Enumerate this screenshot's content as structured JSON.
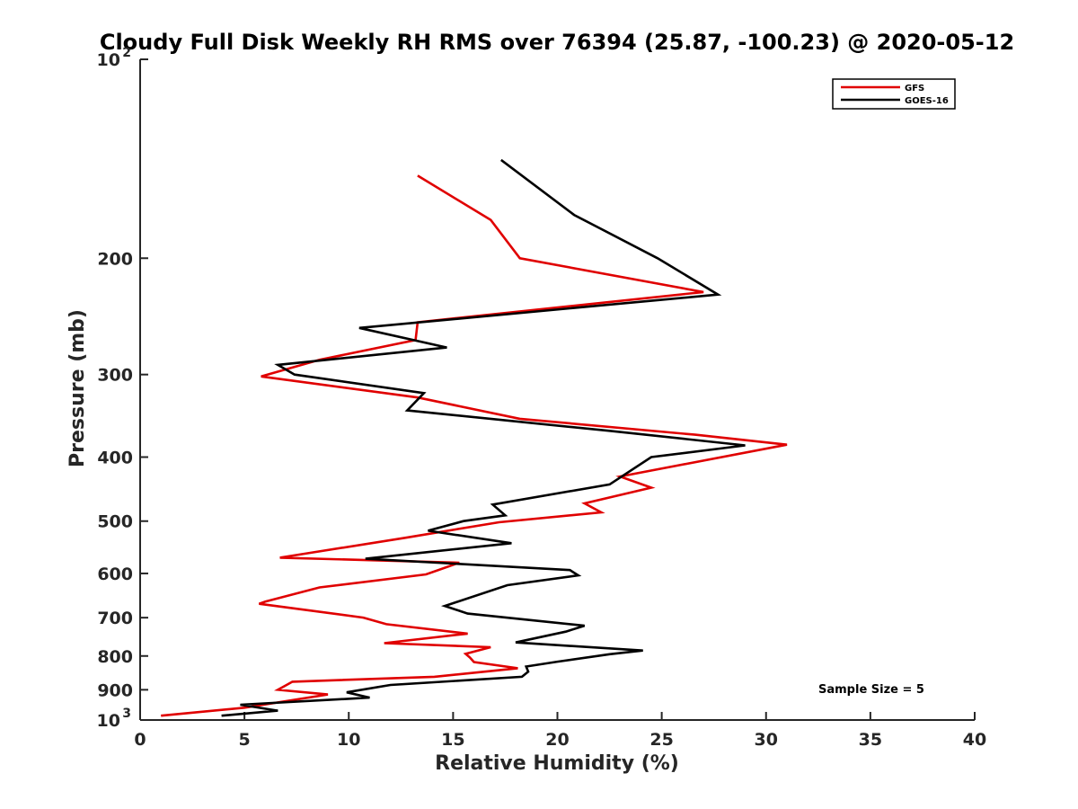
{
  "chart_data": {
    "type": "line",
    "title": "Cloudy Full Disk Weekly RH RMS over 76394 (25.87, -100.23) @ 2020-05-12",
    "xlabel": "Relative Humidity (%)",
    "ylabel": "Pressure (mb)",
    "xlim": [
      0,
      40
    ],
    "ylim": [
      100,
      1000
    ],
    "y_scale": "log",
    "y_reversed": true,
    "grid": false,
    "legend_position": "top-right",
    "x_ticks": [
      "0",
      "5",
      "10",
      "15",
      "20",
      "25",
      "30",
      "35",
      "40"
    ],
    "y_ticks": [
      {
        "value": 100,
        "base": "10",
        "exp": "2"
      },
      {
        "value": 200,
        "label": "200"
      },
      {
        "value": 300,
        "label": "300"
      },
      {
        "value": 400,
        "label": "400"
      },
      {
        "value": 500,
        "label": "500"
      },
      {
        "value": 600,
        "label": "600"
      },
      {
        "value": 700,
        "label": "700"
      },
      {
        "value": 800,
        "label": "800"
      },
      {
        "value": 900,
        "label": "900"
      },
      {
        "value": 1000,
        "base": "10",
        "exp": "3"
      }
    ],
    "annotation": "Sample Size = 5",
    "series": [
      {
        "name": "GFS",
        "color": "#e00000",
        "points": [
          [
            13.3,
            150
          ],
          [
            16.8,
            175
          ],
          [
            18.2,
            200
          ],
          [
            27.0,
            225
          ],
          [
            13.3,
            250
          ],
          [
            13.2,
            266
          ],
          [
            8.6,
            285
          ],
          [
            5.8,
            302
          ],
          [
            13.3,
            325
          ],
          [
            18.2,
            350
          ],
          [
            26.6,
            370
          ],
          [
            31.0,
            383
          ],
          [
            23.0,
            428
          ],
          [
            24.5,
            445
          ],
          [
            21.3,
            470
          ],
          [
            22.1,
            485
          ],
          [
            17.2,
            502
          ],
          [
            12.7,
            530
          ],
          [
            6.7,
            568
          ],
          [
            15.3,
            578
          ],
          [
            13.7,
            602
          ],
          [
            8.6,
            630
          ],
          [
            6.0,
            662
          ],
          [
            5.7,
            667
          ],
          [
            10.7,
            700
          ],
          [
            11.8,
            716
          ],
          [
            15.7,
            740
          ],
          [
            11.7,
            765
          ],
          [
            16.8,
            776
          ],
          [
            15.6,
            794
          ],
          [
            15.8,
            804
          ],
          [
            16.0,
            817
          ],
          [
            18.1,
            835
          ],
          [
            14.1,
            860
          ],
          [
            7.3,
            875
          ],
          [
            6.6,
            900
          ],
          [
            9.0,
            915
          ],
          [
            5.0,
            958
          ],
          [
            1.0,
            985
          ]
        ]
      },
      {
        "name": "GOES-16",
        "color": "#000000",
        "points": [
          [
            17.3,
            142
          ],
          [
            20.8,
            172
          ],
          [
            24.8,
            200
          ],
          [
            27.7,
            227
          ],
          [
            10.5,
            255
          ],
          [
            14.7,
            273
          ],
          [
            6.6,
            290
          ],
          [
            7.4,
            300
          ],
          [
            13.6,
            320
          ],
          [
            12.8,
            340
          ],
          [
            22.5,
            365
          ],
          [
            29.0,
            384
          ],
          [
            24.5,
            400
          ],
          [
            22.5,
            440
          ],
          [
            16.9,
            472
          ],
          [
            17.5,
            490
          ],
          [
            15.5,
            500
          ],
          [
            13.8,
            517
          ],
          [
            17.8,
            540
          ],
          [
            10.8,
            570
          ],
          [
            20.6,
            593
          ],
          [
            21.0,
            604
          ],
          [
            17.6,
            625
          ],
          [
            14.6,
            672
          ],
          [
            15.7,
            690
          ],
          [
            21.3,
            720
          ],
          [
            20.4,
            735
          ],
          [
            18.0,
            763
          ],
          [
            24.1,
            785
          ],
          [
            22.5,
            795
          ],
          [
            20.0,
            816
          ],
          [
            18.5,
            830
          ],
          [
            18.6,
            845
          ],
          [
            18.3,
            860
          ],
          [
            12.0,
            885
          ],
          [
            9.9,
            908
          ],
          [
            11.0,
            925
          ],
          [
            4.8,
            948
          ],
          [
            6.6,
            968
          ],
          [
            3.9,
            985
          ]
        ]
      }
    ]
  }
}
